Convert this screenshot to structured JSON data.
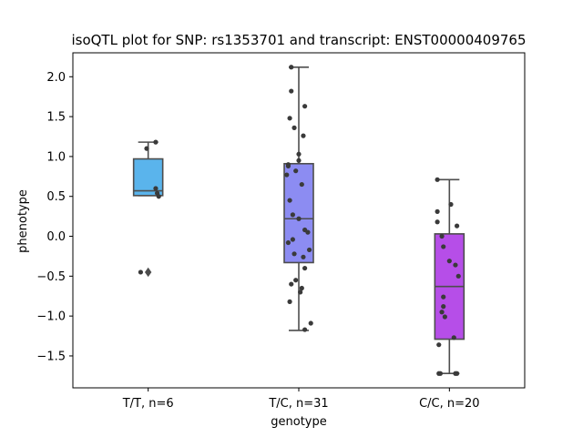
{
  "chart_data": {
    "type": "box",
    "title": "isoQTL plot for SNP: rs1353701 and transcript: ENST00000409765",
    "xlabel": "genotype",
    "ylabel": "phenotype",
    "ylim": [
      -1.9,
      2.3
    ],
    "yticks": [
      -1.5,
      -1.0,
      -0.5,
      0.0,
      0.5,
      1.0,
      1.5,
      2.0
    ],
    "ytick_labels": [
      "−1.5",
      "−1.0",
      "−0.5",
      "0.0",
      "0.5",
      "1.0",
      "1.5",
      "2.0"
    ],
    "grid": false,
    "categories": [
      "T/T, n=6",
      "T/C, n=31",
      "C/C, n=20"
    ],
    "boxes": [
      {
        "category": "T/T, n=6",
        "color": "#5ab4ec",
        "q1": 0.51,
        "median": 0.57,
        "q3": 0.97,
        "whisker_low": 0.51,
        "whisker_high": 1.18,
        "outliers": [
          -0.45
        ],
        "points": [
          {
            "x_offset": -0.05,
            "y": -0.45
          },
          {
            "x_offset": -0.01,
            "y": 1.1
          },
          {
            "x_offset": 0.05,
            "y": 1.18
          },
          {
            "x_offset": 0.05,
            "y": 0.6
          },
          {
            "x_offset": 0.06,
            "y": 0.54
          },
          {
            "x_offset": 0.07,
            "y": 0.5
          }
        ]
      },
      {
        "category": "T/C, n=31",
        "color": "#8c8cf2",
        "q1": -0.33,
        "median": 0.22,
        "q3": 0.91,
        "whisker_low": -1.18,
        "whisker_high": 2.12,
        "outliers": [],
        "points": [
          {
            "x_offset": -0.05,
            "y": 2.12
          },
          {
            "x_offset": -0.05,
            "y": 1.82
          },
          {
            "x_offset": -0.06,
            "y": 1.48
          },
          {
            "x_offset": -0.03,
            "y": 1.36
          },
          {
            "x_offset": 0.04,
            "y": 1.63
          },
          {
            "x_offset": 0.03,
            "y": 1.26
          },
          {
            "x_offset": 0.0,
            "y": 1.03
          },
          {
            "x_offset": 0.0,
            "y": 0.95
          },
          {
            "x_offset": -0.07,
            "y": 0.9
          },
          {
            "x_offset": -0.07,
            "y": 0.88
          },
          {
            "x_offset": -0.02,
            "y": 0.82
          },
          {
            "x_offset": -0.08,
            "y": 0.77
          },
          {
            "x_offset": 0.02,
            "y": 0.65
          },
          {
            "x_offset": -0.06,
            "y": 0.45
          },
          {
            "x_offset": -0.04,
            "y": 0.27
          },
          {
            "x_offset": 0.0,
            "y": 0.22
          },
          {
            "x_offset": 0.04,
            "y": 0.08
          },
          {
            "x_offset": 0.06,
            "y": 0.05
          },
          {
            "x_offset": -0.04,
            "y": -0.04
          },
          {
            "x_offset": -0.07,
            "y": -0.08
          },
          {
            "x_offset": 0.07,
            "y": -0.17
          },
          {
            "x_offset": -0.03,
            "y": -0.22
          },
          {
            "x_offset": 0.03,
            "y": -0.26
          },
          {
            "x_offset": 0.04,
            "y": -0.4
          },
          {
            "x_offset": -0.02,
            "y": -0.55
          },
          {
            "x_offset": -0.05,
            "y": -0.6
          },
          {
            "x_offset": 0.02,
            "y": -0.65
          },
          {
            "x_offset": 0.01,
            "y": -0.7
          },
          {
            "x_offset": -0.06,
            "y": -0.82
          },
          {
            "x_offset": 0.08,
            "y": -1.09
          },
          {
            "x_offset": 0.04,
            "y": -1.17
          }
        ]
      },
      {
        "category": "C/C, n=20",
        "color": "#b64ee8",
        "q1": -1.29,
        "median": -0.63,
        "q3": 0.03,
        "whisker_low": -1.72,
        "whisker_high": 0.71,
        "outliers": [],
        "points": [
          {
            "x_offset": -0.08,
            "y": 0.71
          },
          {
            "x_offset": 0.01,
            "y": 0.4
          },
          {
            "x_offset": -0.08,
            "y": 0.31
          },
          {
            "x_offset": -0.08,
            "y": 0.18
          },
          {
            "x_offset": 0.05,
            "y": 0.13
          },
          {
            "x_offset": -0.05,
            "y": 0.0
          },
          {
            "x_offset": -0.04,
            "y": -0.13
          },
          {
            "x_offset": 0.0,
            "y": -0.31
          },
          {
            "x_offset": 0.04,
            "y": -0.36
          },
          {
            "x_offset": 0.06,
            "y": -0.5
          },
          {
            "x_offset": -0.04,
            "y": -0.76
          },
          {
            "x_offset": -0.04,
            "y": -0.88
          },
          {
            "x_offset": -0.05,
            "y": -0.95
          },
          {
            "x_offset": -0.03,
            "y": -1.01
          },
          {
            "x_offset": 0.03,
            "y": -1.27
          },
          {
            "x_offset": -0.07,
            "y": -1.36
          },
          {
            "x_offset": -0.07,
            "y": -1.72
          },
          {
            "x_offset": -0.06,
            "y": -1.72
          },
          {
            "x_offset": 0.04,
            "y": -1.72
          },
          {
            "x_offset": 0.05,
            "y": -1.72
          }
        ]
      }
    ],
    "colors": {
      "box_edge": "#4d4d4d",
      "point": "#3a3a3a"
    }
  }
}
